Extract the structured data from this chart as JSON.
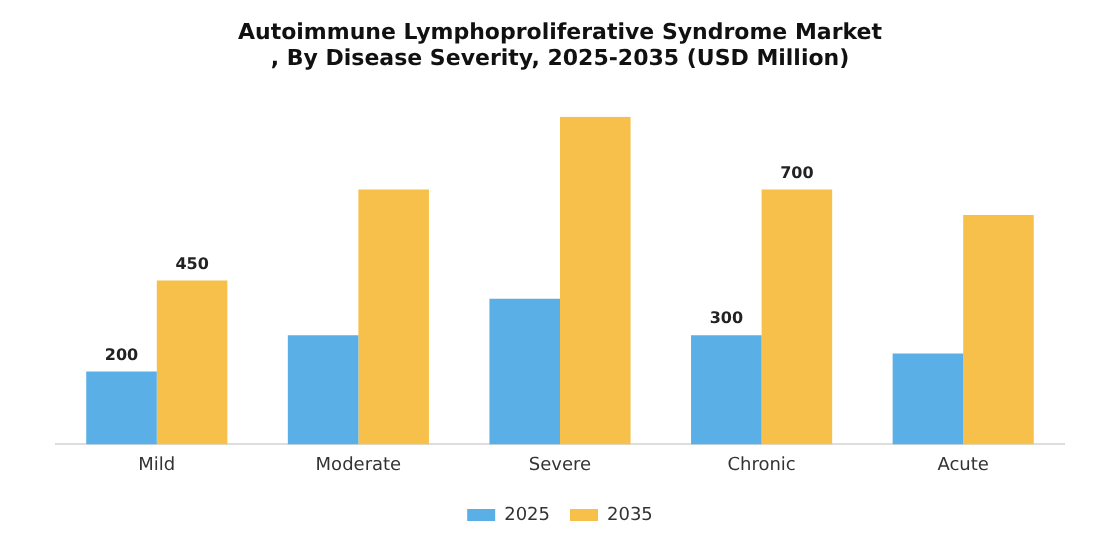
{
  "chart_data": {
    "type": "bar",
    "title": "Autoimmune Lymphoproliferative Syndrome Market\n, By Disease Severity, 2025-2035 (USD Million)",
    "categories": [
      "Mild",
      "Moderate",
      "Severe",
      "Chronic",
      "Acute"
    ],
    "series": [
      {
        "name": "2025",
        "color": "#5ab0e6",
        "values": [
          200,
          300,
          400,
          300,
          250
        ],
        "value_labels": [
          "200",
          null,
          null,
          "300",
          null
        ]
      },
      {
        "name": "2035",
        "color": "#f6c04a",
        "values": [
          450,
          700,
          900,
          700,
          630
        ],
        "value_labels": [
          "450",
          null,
          null,
          "700",
          null
        ]
      }
    ],
    "legend": "bottom",
    "grid": false
  }
}
